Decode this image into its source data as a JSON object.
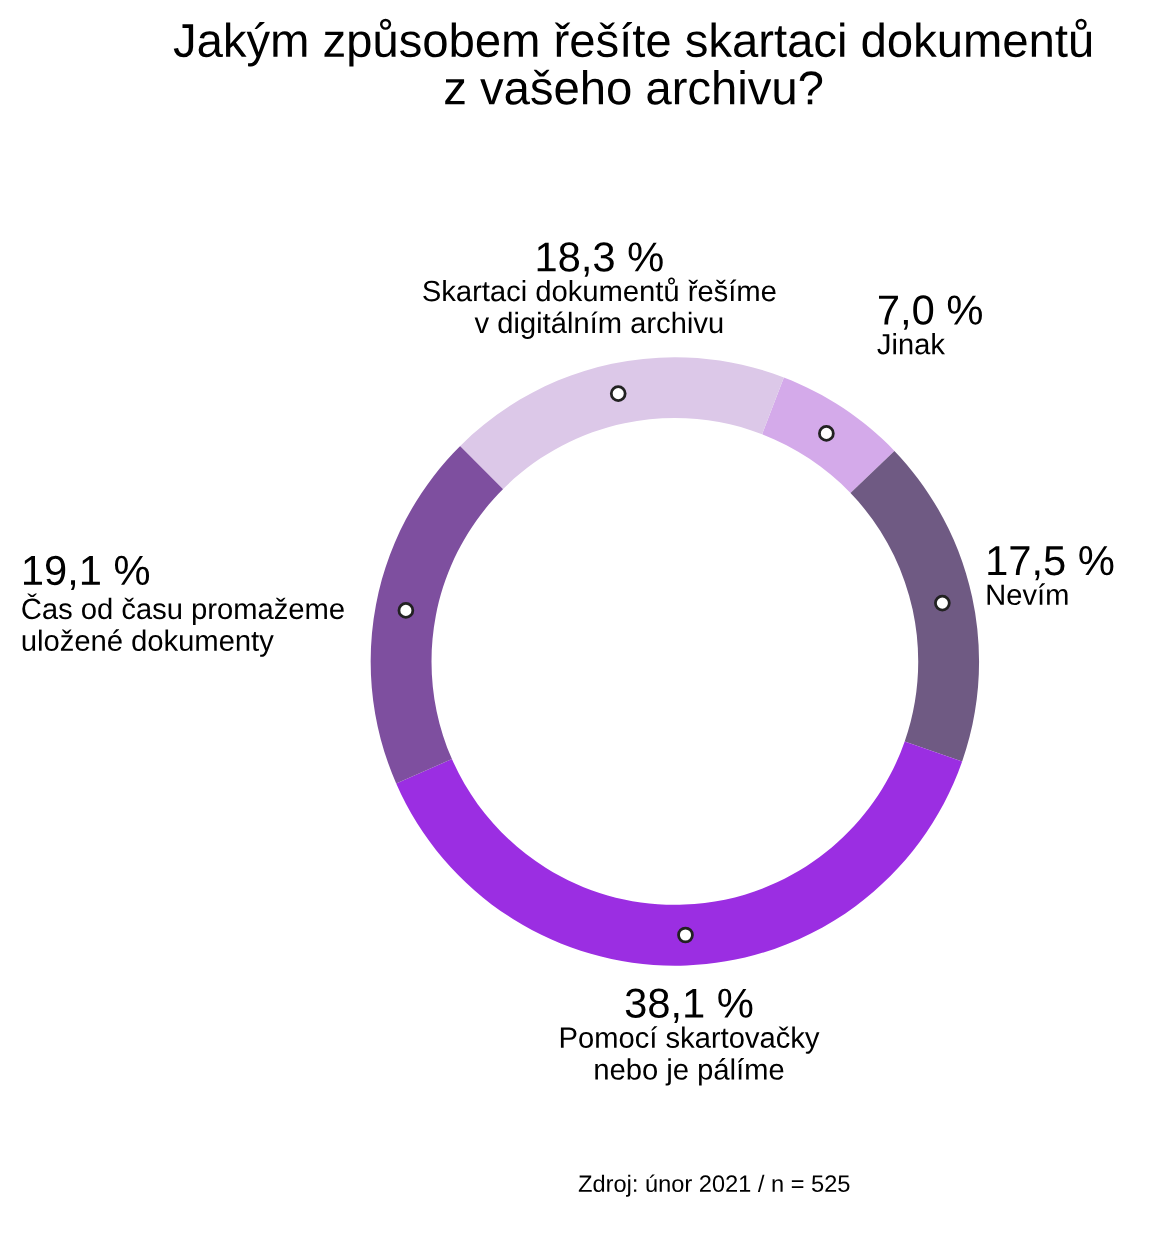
{
  "chart_data": {
    "type": "donut",
    "title": "Jakým způsobem řešíte skartaci dokumentů\nz vašeho archivu?",
    "categories": [
      "Jinak",
      "Nevím",
      "Pomocí skartovačky\nnebo je pálíme",
      "Čas od času promažeme\nuložené dokumenty",
      "Skartaci dokumentů řešíme\nv digitálním archivu"
    ],
    "values": [
      7.0,
      17.5,
      38.1,
      19.1,
      18.3
    ],
    "value_labels": [
      "7,0 %",
      "17,5 %",
      "38,1 %",
      "19,1 %",
      "18,3 %"
    ],
    "colors": [
      "#d4aaea",
      "#6f5a83",
      "#9b2ee2",
      "#7e4f9f",
      "#dcc8e8"
    ],
    "legend": false,
    "annotations": [
      "Zdroj: únor 2021 / n = 525"
    ]
  }
}
